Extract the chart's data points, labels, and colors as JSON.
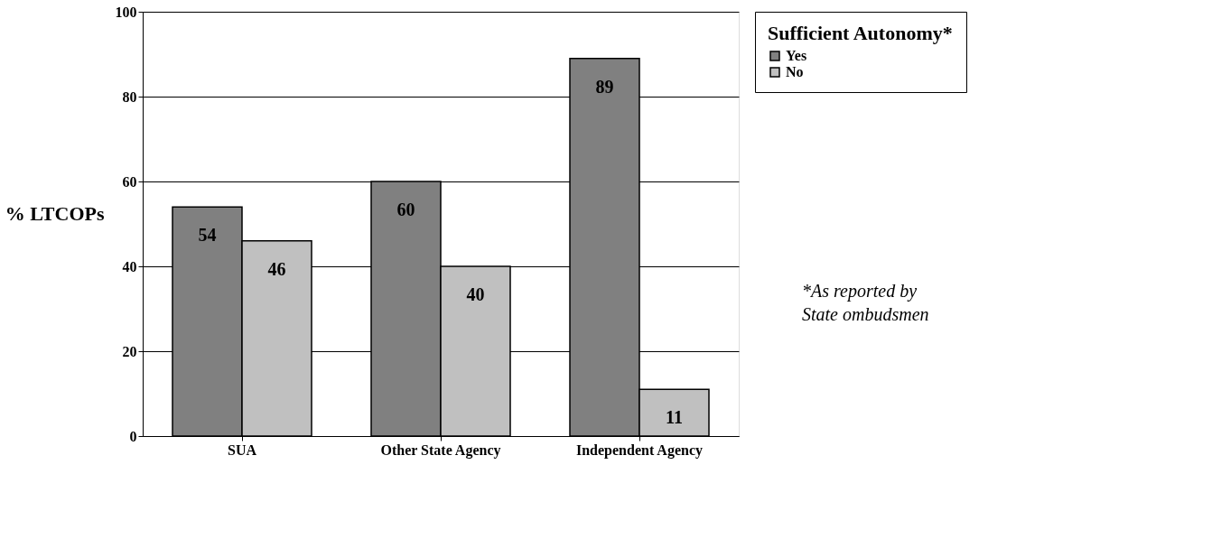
{
  "chart_data": {
    "type": "bar",
    "ylabel": "% LTCOPs",
    "legend_title": "Sufficient Autonomy*",
    "categories": [
      "SUA",
      "Other State Agency",
      "Independent Agency"
    ],
    "series": [
      {
        "name": "Yes",
        "color": "#808080",
        "values": [
          54,
          60,
          89
        ]
      },
      {
        "name": "No",
        "color": "#c0c0c0",
        "values": [
          46,
          40,
          11
        ]
      }
    ],
    "ylim": [
      0,
      100
    ],
    "yticks": [
      0,
      20,
      40,
      60,
      80,
      100
    ],
    "grid": "y",
    "legend": "right",
    "data_labels": true,
    "annotations": [
      "*As reported by State ombudsmen"
    ]
  }
}
